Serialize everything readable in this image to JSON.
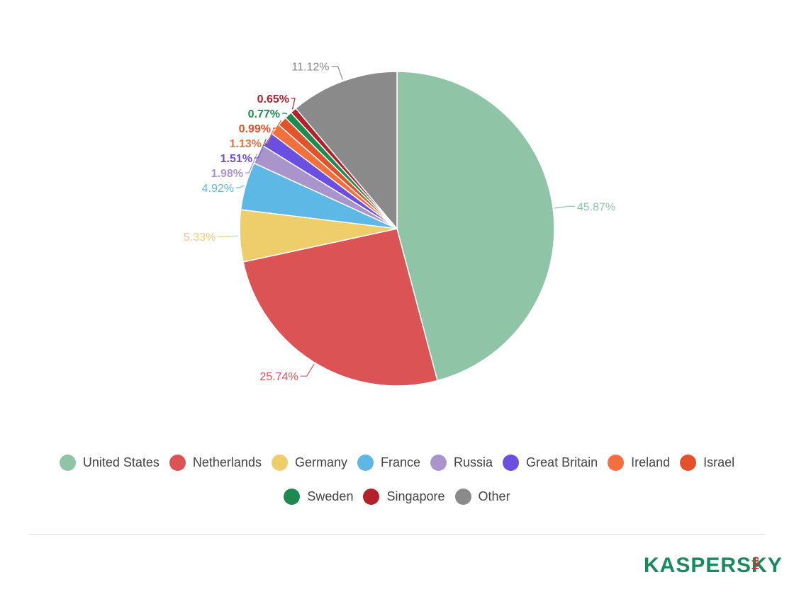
{
  "chart_data": {
    "type": "pie",
    "title": "",
    "start_angle_deg": 0,
    "direction": "clockwise",
    "slices": [
      {
        "name": "United States",
        "value": 45.87,
        "label": "45.87%",
        "color": "#8fc4a7"
      },
      {
        "name": "Netherlands",
        "value": 25.74,
        "label": "25.74%",
        "color": "#dc5356"
      },
      {
        "name": "Germany",
        "value": 5.33,
        "label": "5.33%",
        "color": "#eecd6b"
      },
      {
        "name": "France",
        "value": 4.92,
        "label": "4.92%",
        "color": "#5eb8e6"
      },
      {
        "name": "Russia",
        "value": 1.98,
        "label": "1.98%",
        "color": "#a995cb"
      },
      {
        "name": "Great Britain",
        "value": 1.51,
        "label": "1.51%",
        "color": "#6b4fe0"
      },
      {
        "name": "Ireland",
        "value": 1.13,
        "label": "1.13%",
        "color": "#f2703e"
      },
      {
        "name": "Israel",
        "value": 0.99,
        "label": "0.99%",
        "color": "#e3522a"
      },
      {
        "name": "Sweden",
        "value": 0.77,
        "label": "0.77%",
        "color": "#1e8a4f"
      },
      {
        "name": "Singapore",
        "value": 0.65,
        "label": "0.65%",
        "color": "#b3212a"
      },
      {
        "name": "Other",
        "value": 11.12,
        "label": "11.12%",
        "color": "#8a8a8a"
      }
    ],
    "legend_position": "bottom"
  },
  "logo": {
    "wordmark": "KASPERSKY",
    "suffix": "lab",
    "color": "#1a8a5d",
    "accent": "#d12e2e"
  }
}
